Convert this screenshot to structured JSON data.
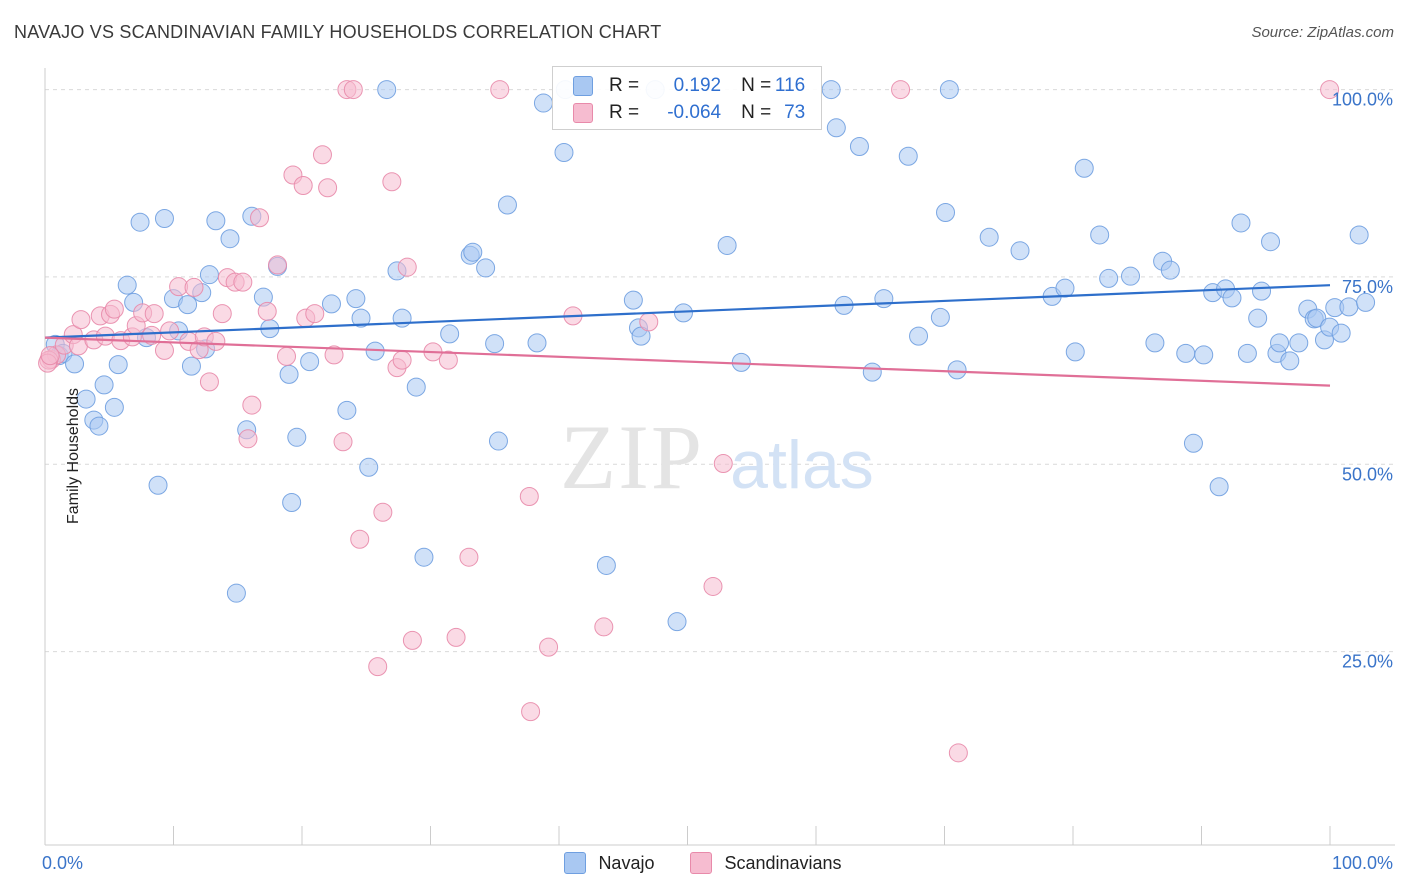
{
  "title": "NAVAJO VS SCANDINAVIAN FAMILY HOUSEHOLDS CORRELATION CHART",
  "source": "Source: ZipAtlas.com",
  "watermark": {
    "zip": "ZIP",
    "atlas": "atlas"
  },
  "legend": {
    "rows": [
      {
        "r_label": "R =",
        "r_value": "0.192",
        "n_label": "N =",
        "n_value": "116",
        "color": "#a9c8f2",
        "border": "#6f9fe0"
      },
      {
        "r_label": "R =",
        "r_value": "-0.064",
        "n_label": "N =",
        "n_value": "73",
        "color": "#f6bcd0",
        "border": "#e88aaa"
      }
    ]
  },
  "chart_data": {
    "type": "scatter",
    "title": "NAVAJO VS SCANDINAVIAN FAMILY HOUSEHOLDS CORRELATION CHART",
    "xlabel": "",
    "ylabel": "Family Households",
    "xlim": [
      0,
      100
    ],
    "ylim": [
      0,
      103
    ],
    "x_tick_labels": [
      "0.0%",
      "100.0%"
    ],
    "y_ticks": [
      25,
      50,
      75,
      100
    ],
    "y_tick_labels": [
      "25.0%",
      "50.0%",
      "75.0%",
      "100.0%"
    ],
    "grid": "horizontal dashed",
    "legend_position": "top-center",
    "series": [
      {
        "name": "Navajo",
        "color": "#a9c8f2",
        "stroke": "#6f9fe0",
        "trend": {
          "x": [
            0,
            100
          ],
          "y": [
            66.9,
            73.9
          ],
          "color": "#2e6fcb"
        },
        "points": [
          [
            0.8,
            66
          ],
          [
            1.1,
            64.5
          ],
          [
            1.4,
            64.8
          ],
          [
            2.3,
            63.4
          ],
          [
            3.2,
            58.7
          ],
          [
            3.8,
            55.9
          ],
          [
            4.2,
            55.1
          ],
          [
            4.6,
            60.6
          ],
          [
            5.4,
            57.6
          ],
          [
            5.7,
            63.3
          ],
          [
            6.4,
            73.9
          ],
          [
            6.9,
            71.6
          ],
          [
            7.4,
            82.3
          ],
          [
            7.9,
            66.9
          ],
          [
            8.8,
            47.2
          ],
          [
            9.3,
            82.8
          ],
          [
            10.0,
            72.1
          ],
          [
            10.4,
            67.8
          ],
          [
            11.1,
            71.3
          ],
          [
            11.4,
            63.1
          ],
          [
            12.2,
            72.9
          ],
          [
            12.5,
            65.4
          ],
          [
            12.8,
            75.3
          ],
          [
            13.3,
            82.5
          ],
          [
            14.4,
            80.1
          ],
          [
            14.9,
            32.8
          ],
          [
            15.7,
            54.6
          ],
          [
            16.1,
            83.1
          ],
          [
            17.0,
            72.3
          ],
          [
            17.5,
            68.1
          ],
          [
            18.1,
            76.4
          ],
          [
            19.0,
            62.0
          ],
          [
            19.2,
            44.9
          ],
          [
            19.6,
            53.6
          ],
          [
            20.6,
            63.7
          ],
          [
            22.3,
            71.4
          ],
          [
            23.5,
            57.2
          ],
          [
            24.2,
            72.1
          ],
          [
            24.6,
            69.5
          ],
          [
            25.2,
            49.6
          ],
          [
            25.7,
            65.1
          ],
          [
            26.6,
            100.0
          ],
          [
            27.4,
            75.8
          ],
          [
            27.8,
            69.5
          ],
          [
            28.9,
            60.3
          ],
          [
            29.5,
            37.6
          ],
          [
            31.5,
            67.4
          ],
          [
            33.1,
            77.9
          ],
          [
            33.3,
            78.3
          ],
          [
            34.3,
            76.2
          ],
          [
            35.0,
            66.1
          ],
          [
            35.3,
            53.1
          ],
          [
            36.0,
            84.6
          ],
          [
            38.3,
            66.2
          ],
          [
            38.8,
            98.2
          ],
          [
            40.4,
            91.6
          ],
          [
            40.5,
            100.0
          ],
          [
            43.7,
            36.5
          ],
          [
            45.8,
            71.9
          ],
          [
            46.2,
            68.2
          ],
          [
            46.4,
            67.1
          ],
          [
            47.5,
            100.0
          ],
          [
            49.2,
            29.0
          ],
          [
            49.7,
            70.2
          ],
          [
            53.1,
            79.2
          ],
          [
            54.2,
            63.6
          ],
          [
            61.2,
            100.0
          ],
          [
            61.6,
            94.9
          ],
          [
            62.2,
            71.2
          ],
          [
            63.4,
            92.4
          ],
          [
            64.4,
            62.3
          ],
          [
            65.3,
            72.1
          ],
          [
            67.2,
            91.1
          ],
          [
            68.0,
            67.1
          ],
          [
            69.7,
            69.6
          ],
          [
            70.1,
            83.6
          ],
          [
            70.4,
            100.0
          ],
          [
            71.0,
            62.6
          ],
          [
            73.5,
            80.3
          ],
          [
            75.9,
            78.5
          ],
          [
            78.4,
            72.4
          ],
          [
            79.4,
            73.5
          ],
          [
            80.2,
            65.0
          ],
          [
            80.9,
            89.5
          ],
          [
            82.1,
            80.6
          ],
          [
            82.8,
            74.8
          ],
          [
            84.5,
            75.1
          ],
          [
            86.4,
            66.2
          ],
          [
            87.0,
            77.1
          ],
          [
            87.6,
            75.9
          ],
          [
            88.8,
            64.8
          ],
          [
            89.4,
            52.8
          ],
          [
            90.2,
            64.6
          ],
          [
            90.9,
            72.9
          ],
          [
            91.4,
            47.0
          ],
          [
            91.9,
            73.4
          ],
          [
            92.4,
            72.2
          ],
          [
            93.1,
            82.2
          ],
          [
            93.6,
            64.8
          ],
          [
            94.4,
            69.5
          ],
          [
            94.7,
            73.1
          ],
          [
            95.4,
            79.7
          ],
          [
            95.9,
            64.8
          ],
          [
            96.1,
            66.2
          ],
          [
            96.9,
            63.8
          ],
          [
            97.6,
            66.2
          ],
          [
            98.3,
            70.7
          ],
          [
            98.8,
            69.4
          ],
          [
            99.0,
            69.5
          ],
          [
            99.6,
            66.6
          ],
          [
            100.0,
            68.3
          ],
          [
            100.4,
            70.9
          ],
          [
            100.9,
            67.5
          ],
          [
            101.5,
            71.0
          ],
          [
            102.3,
            80.6
          ],
          [
            102.8,
            71.6
          ]
        ]
      },
      {
        "name": "Scandinavians",
        "color": "#f6bcd0",
        "stroke": "#e88aaa",
        "trend": {
          "x": [
            0,
            100
          ],
          "y": [
            66.9,
            60.5
          ],
          "color": "#e06f97"
        },
        "points": [
          [
            0.5,
            64.0
          ],
          [
            0.9,
            64.6
          ],
          [
            1.5,
            65.9
          ],
          [
            2.2,
            67.3
          ],
          [
            2.6,
            65.8
          ],
          [
            2.8,
            69.3
          ],
          [
            3.8,
            66.6
          ],
          [
            4.3,
            69.8
          ],
          [
            4.7,
            67.1
          ],
          [
            5.1,
            70.0
          ],
          [
            5.4,
            70.7
          ],
          [
            5.9,
            66.5
          ],
          [
            6.8,
            67.0
          ],
          [
            7.1,
            68.5
          ],
          [
            7.6,
            70.2
          ],
          [
            8.3,
            67.2
          ],
          [
            8.5,
            70.1
          ],
          [
            9.3,
            65.2
          ],
          [
            9.7,
            67.8
          ],
          [
            10.4,
            73.7
          ],
          [
            11.2,
            66.4
          ],
          [
            11.6,
            73.6
          ],
          [
            12.0,
            65.3
          ],
          [
            12.4,
            67.0
          ],
          [
            12.8,
            61.0
          ],
          [
            13.3,
            66.4
          ],
          [
            13.8,
            70.1
          ],
          [
            14.2,
            74.9
          ],
          [
            14.8,
            74.3
          ],
          [
            15.4,
            74.3
          ],
          [
            15.8,
            53.4
          ],
          [
            16.1,
            57.9
          ],
          [
            16.7,
            82.9
          ],
          [
            17.3,
            70.4
          ],
          [
            18.1,
            76.6
          ],
          [
            18.8,
            64.4
          ],
          [
            19.3,
            88.6
          ],
          [
            20.1,
            87.2
          ],
          [
            20.3,
            69.5
          ],
          [
            21.0,
            70.1
          ],
          [
            21.6,
            91.3
          ],
          [
            22.0,
            86.9
          ],
          [
            22.5,
            64.6
          ],
          [
            23.2,
            53.0
          ],
          [
            23.5,
            100.0
          ],
          [
            24.0,
            100.0
          ],
          [
            24.5,
            40.0
          ],
          [
            25.9,
            23.0
          ],
          [
            26.3,
            43.6
          ],
          [
            27.0,
            87.7
          ],
          [
            27.4,
            62.9
          ],
          [
            27.8,
            63.9
          ],
          [
            28.2,
            76.3
          ],
          [
            28.6,
            26.5
          ],
          [
            30.2,
            65.0
          ],
          [
            31.4,
            63.9
          ],
          [
            32.0,
            26.9
          ],
          [
            33.0,
            37.6
          ],
          [
            35.4,
            100.0
          ],
          [
            37.7,
            45.7
          ],
          [
            37.8,
            17.0
          ],
          [
            39.2,
            25.6
          ],
          [
            41.1,
            69.8
          ],
          [
            43.5,
            28.3
          ],
          [
            47.0,
            69.0
          ],
          [
            52.0,
            33.7
          ],
          [
            52.8,
            50.1
          ],
          [
            66.6,
            100.0
          ],
          [
            71.1,
            11.5
          ],
          [
            100.0,
            100.0
          ],
          [
            0.3,
            63.9
          ],
          [
            0.2,
            63.5
          ],
          [
            0.4,
            64.5
          ]
        ]
      }
    ]
  }
}
